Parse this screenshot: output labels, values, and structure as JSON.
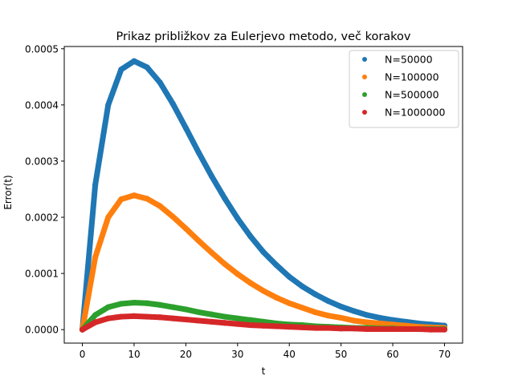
{
  "chart_data": {
    "type": "scatter",
    "title": "Prikaz približkov za Eulerjevo metodo, več korakov",
    "xlabel": "t",
    "ylabel": "Error(t)",
    "xlim": [
      -3.5,
      73.5
    ],
    "ylim": [
      -2.4e-05,
      0.000504
    ],
    "xticks": [
      0,
      10,
      20,
      30,
      40,
      50,
      60,
      70
    ],
    "xtick_labels": [
      "0",
      "10",
      "20",
      "30",
      "40",
      "50",
      "60",
      "70"
    ],
    "yticks": [
      0,
      0.0001,
      0.0002,
      0.0003,
      0.0004,
      0.0005
    ],
    "ytick_labels": [
      "0.0000",
      "0.0001",
      "0.0002",
      "0.0003",
      "0.0004",
      "0.0005"
    ],
    "grid": false,
    "legend_position": "upper right",
    "series": [
      {
        "name": "N=50000",
        "color": "#1f77b4",
        "x": [
          0,
          2.5,
          5,
          7.5,
          10,
          12.5,
          15,
          17.5,
          20,
          22.5,
          25,
          27.5,
          30,
          32.5,
          35,
          37.5,
          40,
          42.5,
          45,
          47.5,
          50,
          52.5,
          55,
          57.5,
          60,
          62.5,
          65,
          67.5,
          70
        ],
        "y": [
          0,
          0.000258,
          0.0004,
          0.000463,
          0.000478,
          0.000467,
          0.00044,
          0.000402,
          0.000359,
          0.000315,
          0.000273,
          0.000234,
          0.000198,
          0.000166,
          0.000138,
          0.000115,
          9.4e-05,
          7.7e-05,
          6.3e-05,
          5.1e-05,
          4.1e-05,
          3.3e-05,
          2.6e-05,
          2.1e-05,
          1.7e-05,
          1.4e-05,
          1.1e-05,
          9e-06,
          7e-06
        ]
      },
      {
        "name": "N=100000",
        "color": "#ff7f0e",
        "x": [
          0,
          2.5,
          5,
          7.5,
          10,
          12.5,
          15,
          17.5,
          20,
          22.5,
          25,
          27.5,
          30,
          32.5,
          35,
          37.5,
          40,
          42.5,
          45,
          47.5,
          50,
          52.5,
          55,
          57.5,
          60,
          62.5,
          65,
          67.5,
          70
        ],
        "y": [
          0,
          0.000129,
          0.0002,
          0.000232,
          0.000239,
          0.000233,
          0.00022,
          0.000201,
          0.00018,
          0.000158,
          0.000137,
          0.000117,
          9.9e-05,
          8.3e-05,
          6.9e-05,
          5.7e-05,
          4.7e-05,
          3.9e-05,
          3.1e-05,
          2.5e-05,
          2.1e-05,
          1.6e-05,
          1.3e-05,
          1.1e-05,
          9e-06,
          7e-06,
          5e-06,
          4e-06,
          3e-06
        ]
      },
      {
        "name": "N=500000",
        "color": "#2ca02c",
        "x": [
          0,
          2.5,
          5,
          7.5,
          10,
          12.5,
          15,
          17.5,
          20,
          22.5,
          25,
          27.5,
          30,
          32.5,
          35,
          37.5,
          40,
          42.5,
          45,
          47.5,
          50,
          52.5,
          55,
          57.5,
          60,
          62.5,
          65,
          67.5,
          70
        ],
        "y": [
          0,
          2.6e-05,
          4e-05,
          4.6e-05,
          4.8e-05,
          4.7e-05,
          4.4e-05,
          4e-05,
          3.6e-05,
          3.1e-05,
          2.7e-05,
          2.3e-05,
          2e-05,
          1.7e-05,
          1.4e-05,
          1.1e-05,
          9e-06,
          8e-06,
          6e-06,
          5e-06,
          4e-06,
          3e-06,
          3e-06,
          2e-06,
          2e-06,
          1e-06,
          1e-06,
          1e-06,
          1e-06
        ]
      },
      {
        "name": "N=1000000",
        "color": "#d62728",
        "x": [
          0,
          2.5,
          5,
          7.5,
          10,
          12.5,
          15,
          17.5,
          20,
          22.5,
          25,
          27.5,
          30,
          32.5,
          35,
          37.5,
          40,
          42.5,
          45,
          47.5,
          50,
          52.5,
          55,
          57.5,
          60,
          62.5,
          65,
          67.5,
          70
        ],
        "y": [
          0,
          1.3e-05,
          2e-05,
          2.3e-05,
          2.4e-05,
          2.3e-05,
          2.2e-05,
          2e-05,
          1.8e-05,
          1.6e-05,
          1.4e-05,
          1.2e-05,
          1e-05,
          8e-06,
          7e-06,
          6e-06,
          5e-06,
          4e-06,
          3e-06,
          3e-06,
          2e-06,
          2e-06,
          1e-06,
          1e-06,
          1e-06,
          1e-06,
          1e-06,
          0,
          0
        ]
      }
    ]
  }
}
